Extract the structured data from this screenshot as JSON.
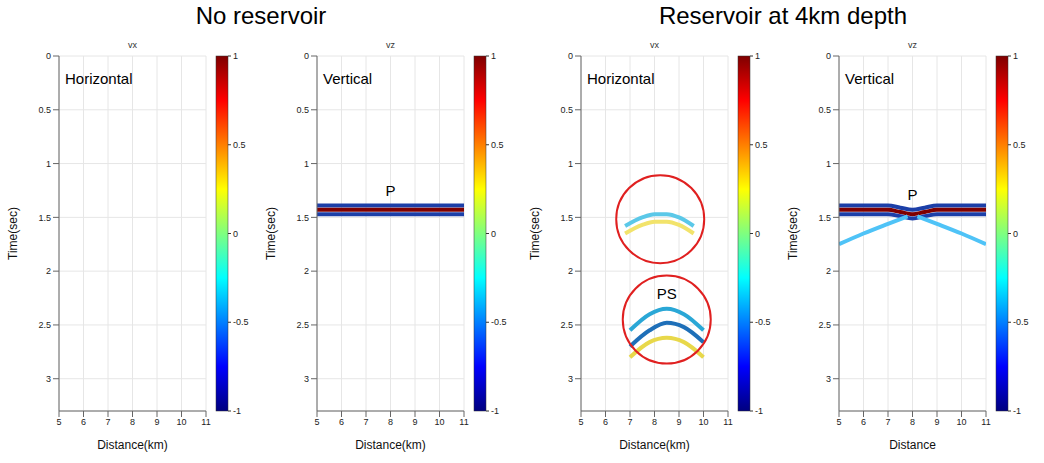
{
  "headings": [
    "No reservoir",
    "Reservoir at 4km depth"
  ],
  "chart_data": [
    {
      "type": "line",
      "title": "vx",
      "annotation": "Horizontal",
      "xlabel": "Distance(km)",
      "ylabel": "Time(sec)",
      "xlim": [
        5,
        11
      ],
      "xticks": [
        5,
        6,
        7,
        8,
        9,
        10,
        11
      ],
      "ylim": [
        0,
        3.3
      ],
      "yticks": [
        0,
        0.5,
        1,
        1.5,
        2,
        2.5,
        3
      ],
      "grid": true,
      "colorbar": {
        "range": [
          -1,
          1
        ],
        "ticks": [
          -1,
          -0.5,
          0,
          0.5,
          1
        ]
      },
      "series": []
    },
    {
      "type": "line",
      "title": "vz",
      "annotation": "Vertical",
      "xlabel": "Distance(km)",
      "ylabel": "Time(sec)",
      "xlim": [
        5,
        11
      ],
      "xticks": [
        5,
        6,
        7,
        8,
        9,
        10,
        11
      ],
      "ylim": [
        0,
        3.3
      ],
      "yticks": [
        0,
        0.5,
        1,
        1.5,
        2,
        2.5,
        3
      ],
      "grid": true,
      "colorbar": {
        "range": [
          -1,
          1
        ],
        "ticks": [
          -1,
          -0.5,
          0,
          0.5,
          1
        ]
      },
      "series": [
        {
          "name": "P",
          "color": "#1c3fa8",
          "x": [
            5,
            8,
            11
          ],
          "values": [
            1.39,
            1.39,
            1.39
          ]
        },
        {
          "color": "#7f0000",
          "x": [
            5,
            11
          ],
          "values": [
            1.43,
            1.43
          ]
        },
        {
          "color": "#1c3fa8",
          "x": [
            5,
            11
          ],
          "values": [
            1.47,
            1.47
          ]
        }
      ]
    },
    {
      "type": "line",
      "title": "vx",
      "annotation": "Horizontal",
      "xlabel": "Distance(km)",
      "ylabel": "Time(sec)",
      "xlim": [
        5,
        11
      ],
      "xticks": [
        5,
        6,
        7,
        8,
        9,
        10,
        11
      ],
      "ylim": [
        0,
        3.3
      ],
      "yticks": [
        0,
        0.5,
        1,
        1.5,
        2,
        2.5,
        3
      ],
      "grid": true,
      "colorbar": {
        "range": [
          -1,
          1
        ],
        "ticks": [
          -1,
          -0.5,
          0,
          0.5,
          1
        ]
      },
      "series": [
        {
          "color": "#5bc8e8",
          "x": [
            6.8,
            7.5,
            8,
            8.5,
            9,
            9.6
          ],
          "values": [
            1.58,
            1.5,
            1.47,
            1.47,
            1.5,
            1.58
          ]
        },
        {
          "color": "#f2e36b",
          "x": [
            6.8,
            7.5,
            8,
            8.5,
            9,
            9.6
          ],
          "values": [
            1.65,
            1.57,
            1.54,
            1.54,
            1.57,
            1.65
          ]
        },
        {
          "name": "PS",
          "color": "#2aa7d6",
          "x": [
            7,
            7.8,
            8.5,
            9.2,
            10
          ],
          "values": [
            2.55,
            2.4,
            2.35,
            2.4,
            2.55
          ]
        },
        {
          "color": "#1e6fb8",
          "x": [
            7,
            7.8,
            8.5,
            9.2,
            10
          ],
          "values": [
            2.7,
            2.55,
            2.48,
            2.52,
            2.66
          ]
        },
        {
          "color": "#e8d84a",
          "x": [
            7,
            7.8,
            8.5,
            9.2,
            10
          ],
          "values": [
            2.8,
            2.66,
            2.62,
            2.66,
            2.8
          ]
        }
      ]
    },
    {
      "type": "line",
      "title": "vz",
      "annotation": "Vertical",
      "xlabel": "Distance",
      "ylabel": "Time(sec)",
      "xlim": [
        5,
        11
      ],
      "xticks": [
        5,
        6,
        7,
        8,
        9,
        10,
        11
      ],
      "ylim": [
        0,
        3.3
      ],
      "yticks": [
        0,
        0.5,
        1,
        1.5,
        2,
        2.5,
        3
      ],
      "grid": true,
      "colorbar": {
        "range": [
          -1,
          1
        ],
        "ticks": [
          -1,
          -0.5,
          0,
          0.5,
          1
        ]
      },
      "series": [
        {
          "name": "P",
          "color": "#1c3fa8",
          "x": [
            5,
            6,
            7,
            7.5,
            8,
            8.5,
            9,
            10,
            11
          ],
          "values": [
            1.39,
            1.39,
            1.39,
            1.41,
            1.43,
            1.41,
            1.39,
            1.39,
            1.39
          ]
        },
        {
          "color": "#7f0000",
          "x": [
            5,
            6,
            7,
            7.5,
            8,
            8.5,
            9,
            10,
            11
          ],
          "values": [
            1.43,
            1.43,
            1.43,
            1.45,
            1.47,
            1.45,
            1.43,
            1.43,
            1.43
          ]
        },
        {
          "color": "#1c3fa8",
          "x": [
            5,
            6,
            7,
            7.5,
            8,
            8.5,
            9,
            10,
            11
          ],
          "values": [
            1.47,
            1.47,
            1.47,
            1.49,
            1.51,
            1.49,
            1.47,
            1.47,
            1.47
          ]
        },
        {
          "color": "#4fc3f7",
          "x": [
            5,
            6,
            7,
            7.8
          ],
          "values": [
            1.75,
            1.65,
            1.56,
            1.49
          ]
        },
        {
          "color": "#4fc3f7",
          "x": [
            8.2,
            9,
            10,
            11
          ],
          "values": [
            1.49,
            1.56,
            1.65,
            1.75
          ]
        }
      ]
    }
  ]
}
